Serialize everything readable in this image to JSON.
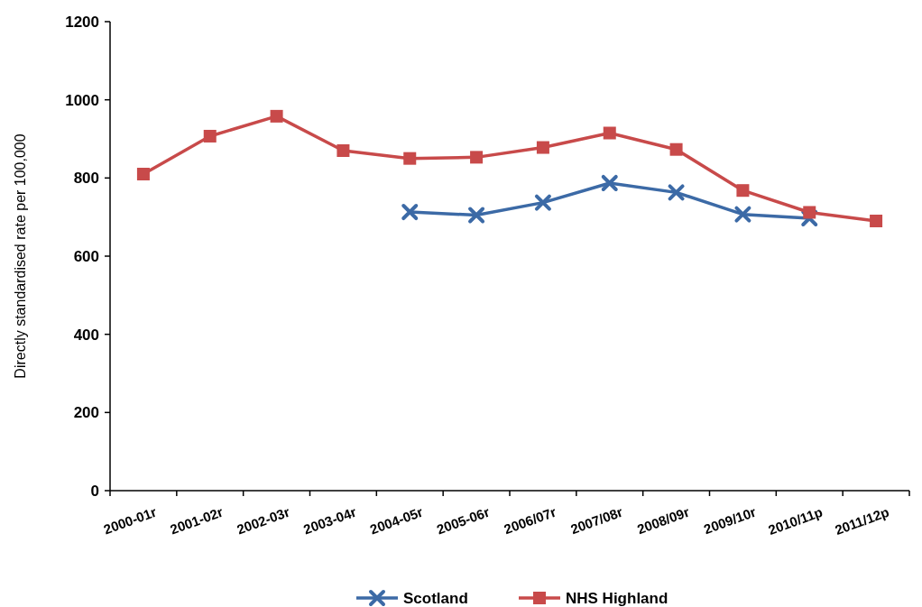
{
  "chart_data": {
    "type": "line",
    "ylabel": "Directly standardised rate per 100,000",
    "categories": [
      "2000-01r",
      "2001-02r",
      "2002-03r",
      "2003-04r",
      "2004-05r",
      "2005-06r",
      "2006/07r",
      "2007/08r",
      "2008/09r",
      "2009/10r",
      "2010/11p",
      "2011/12p"
    ],
    "series": [
      {
        "name": "Scotland",
        "color": "#3c6aa6",
        "marker": "cross",
        "values": [
          null,
          null,
          null,
          null,
          713,
          705,
          737,
          787,
          763,
          707,
          697,
          null
        ]
      },
      {
        "name": "NHS Highland",
        "color": "#c84a4a",
        "marker": "square",
        "values": [
          810,
          907,
          958,
          870,
          850,
          853,
          878,
          915,
          873,
          768,
          712,
          690
        ]
      }
    ],
    "ylim": [
      0,
      1200
    ],
    "yticks": [
      0,
      200,
      400,
      600,
      800,
      1000,
      1200
    ],
    "grid": false,
    "legend": "bottom"
  }
}
